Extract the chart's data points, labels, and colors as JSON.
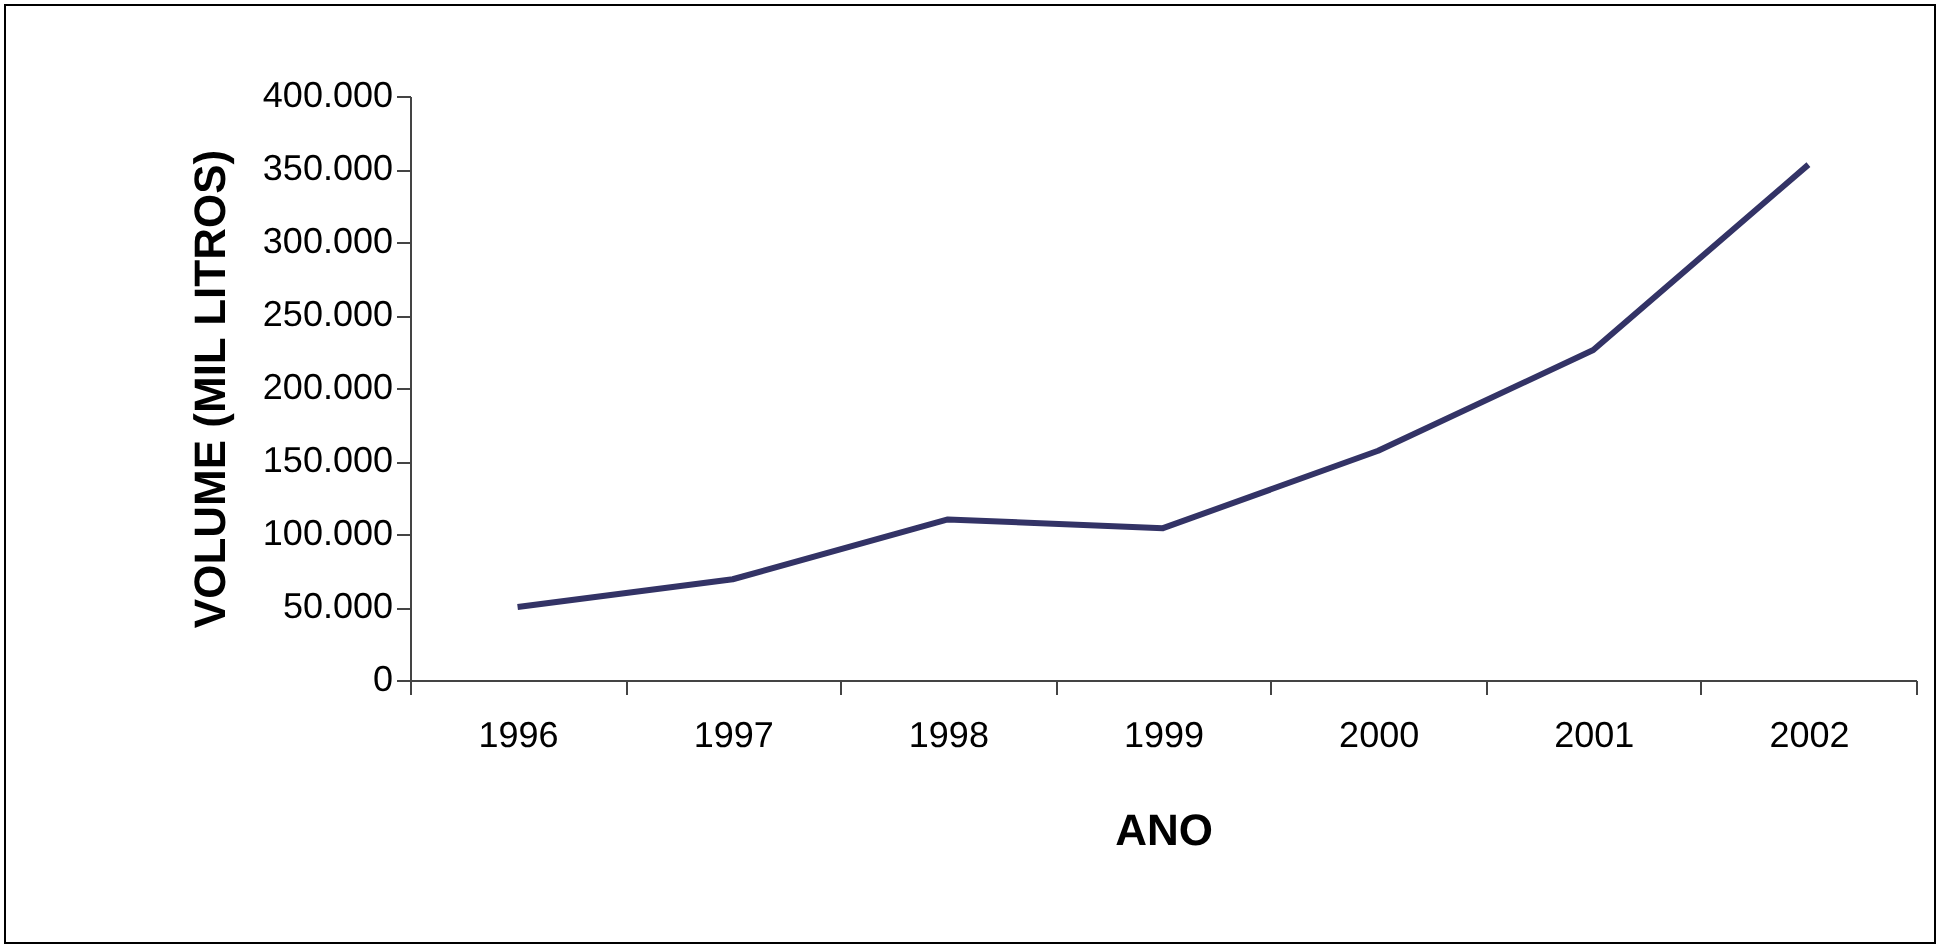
{
  "chart_data": {
    "type": "line",
    "xlabel": "ANO",
    "ylabel": "VOLUME (MIL LITROS)",
    "categories": [
      "1996",
      "1997",
      "1998",
      "1999",
      "2000",
      "2001",
      "2002"
    ],
    "series": [
      {
        "color": "#333366",
        "values": [
          50000,
          69000,
          110000,
          104000,
          157000,
          226000,
          353000
        ]
      }
    ],
    "ylim": [
      0,
      400000
    ],
    "yticks": [
      0,
      {
        "value": 50000,
        "label": "50.000"
      },
      {
        "value": 100000,
        "label": "100.000"
      },
      {
        "value": 150000,
        "label": "150.000"
      },
      {
        "value": 200000,
        "label": "200.000"
      },
      {
        "value": 250000,
        "label": "250.000"
      },
      {
        "value": 300000,
        "label": "300.000"
      },
      {
        "value": 350000,
        "label": "350.000"
      },
      {
        "value": 400000,
        "label": "400.000"
      }
    ],
    "grid": false,
    "legend": false,
    "marker": "none",
    "line_style": "solid"
  }
}
